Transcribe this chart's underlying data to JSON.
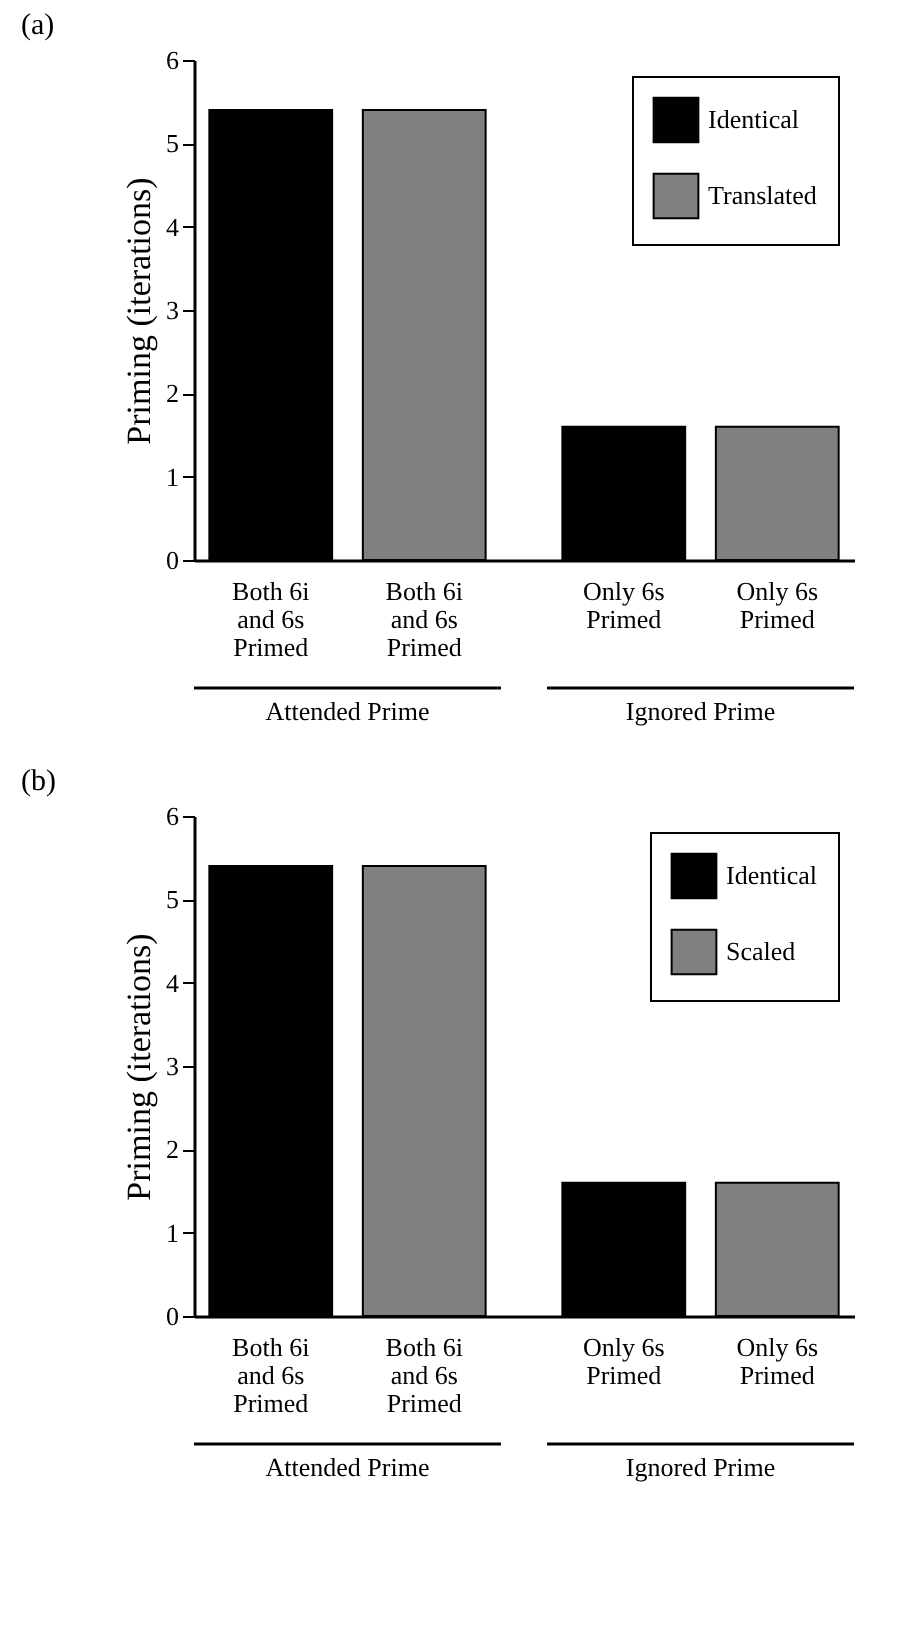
{
  "chart_data": [
    {
      "type": "bar",
      "title": "(a)",
      "ylabel": "Priming (iterations)",
      "categories": [
        "Both 6i and 6s Primed",
        "Both 6i and 6s Primed",
        "Only 6s Primed",
        "Only 6s Primed"
      ],
      "series": [
        {
          "name": "Identical",
          "color": "#000000",
          "values": [
            5.4,
            null,
            1.6,
            null
          ]
        },
        {
          "name": "Translated",
          "color": "#808080",
          "values": [
            null,
            5.4,
            null,
            1.6
          ]
        }
      ],
      "annotations": [
        "Attended Prime",
        "Ignored Prime"
      ],
      "ylim": [
        0,
        6
      ],
      "yticks": [
        0,
        1,
        2,
        3,
        4,
        5,
        6
      ],
      "grid": false,
      "legend": "top right"
    },
    {
      "type": "bar",
      "title": "(b)",
      "ylabel": "Priming (iterations)",
      "categories": [
        "Both 6i and 6s Primed",
        "Both 6i and 6s Primed",
        "Only 6s Primed",
        "Only 6s Primed"
      ],
      "series": [
        {
          "name": "Identical",
          "color": "#000000",
          "values": [
            5.4,
            null,
            1.6,
            null
          ]
        },
        {
          "name": "Scaled",
          "color": "#808080",
          "values": [
            null,
            5.4,
            null,
            1.6
          ]
        }
      ],
      "annotations": [
        "Attended Prime",
        "Ignored Prime"
      ],
      "ylim": [
        0,
        6
      ],
      "yticks": [
        0,
        1,
        2,
        3,
        4,
        5,
        6
      ],
      "grid": false,
      "legend": "top right"
    }
  ]
}
